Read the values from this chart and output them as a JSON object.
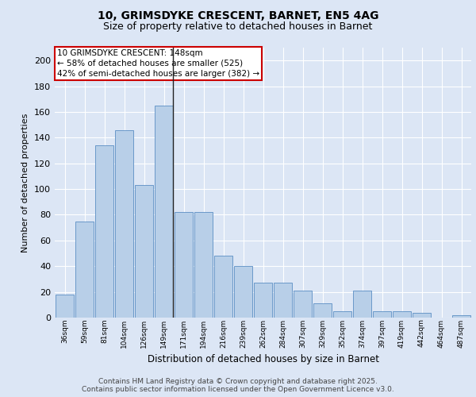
{
  "title1": "10, GRIMSDYKE CRESCENT, BARNET, EN5 4AG",
  "title2": "Size of property relative to detached houses in Barnet",
  "xlabel": "Distribution of detached houses by size in Barnet",
  "ylabel": "Number of detached properties",
  "categories": [
    "36sqm",
    "59sqm",
    "81sqm",
    "104sqm",
    "126sqm",
    "149sqm",
    "171sqm",
    "194sqm",
    "216sqm",
    "239sqm",
    "262sqm",
    "284sqm",
    "307sqm",
    "329sqm",
    "352sqm",
    "374sqm",
    "397sqm",
    "419sqm",
    "442sqm",
    "464sqm",
    "487sqm"
  ],
  "values": [
    18,
    75,
    134,
    146,
    103,
    165,
    82,
    82,
    48,
    40,
    27,
    27,
    21,
    11,
    5,
    21,
    5,
    5,
    4,
    0,
    2
  ],
  "bar_color": "#b8cfe8",
  "bar_edgecolor": "#5b8ec4",
  "highlight_index": 5,
  "vline_color": "#222222",
  "annotation_box_text": "10 GRIMSDYKE CRESCENT: 148sqm\n← 58% of detached houses are smaller (525)\n42% of semi-detached houses are larger (382) →",
  "annotation_box_edgecolor": "#cc0000",
  "annotation_box_facecolor": "white",
  "ylim": [
    0,
    210
  ],
  "yticks": [
    0,
    20,
    40,
    60,
    80,
    100,
    120,
    140,
    160,
    180,
    200
  ],
  "background_color": "#dce6f5",
  "plot_background": "#dce6f5",
  "footer_line1": "Contains HM Land Registry data © Crown copyright and database right 2025.",
  "footer_line2": "Contains public sector information licensed under the Open Government Licence v3.0.",
  "title1_fontsize": 10,
  "title2_fontsize": 9,
  "annotation_fontsize": 7.5,
  "footer_fontsize": 6.5,
  "ylabel_fontsize": 8,
  "xlabel_fontsize": 8.5
}
